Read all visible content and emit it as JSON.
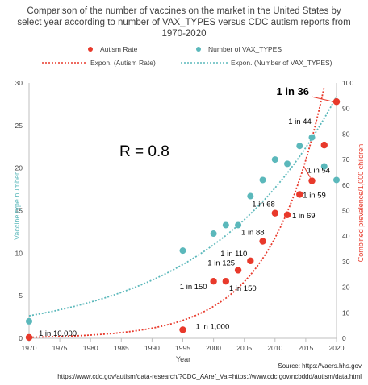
{
  "chart_data": {
    "type": "scatter",
    "title_lines": [
      "Comparison of the number of vaccines on the market in the United States by",
      "select year according to number of VAX_TYPES versus CDC autism reports from",
      "1970-2020"
    ],
    "legend": {
      "autism": "Autism Rate",
      "vax": "Number of VAX_TYPES",
      "autism_trend": "Expon. (Autism Rate)",
      "vax_trend": "Expon. (Number of VAX_TYPES)"
    },
    "xlabel": "Year",
    "ylabel_left": "Vaccine type number",
    "ylabel_right": "Combined prevalence/1,000 children",
    "xlim": [
      1970,
      2020
    ],
    "ylim_left": [
      0,
      30
    ],
    "ylim_right": [
      0,
      100
    ],
    "x_ticks": [
      "1970",
      "1975",
      "1980",
      "1985",
      "1990",
      "1995",
      "2000",
      "2005",
      "2010",
      "2015",
      "2020"
    ],
    "y_left_ticks": [
      "0",
      "5",
      "10",
      "15",
      "20",
      "25",
      "30"
    ],
    "y_right_ticks": [
      "0",
      "10",
      "20",
      "30",
      "40",
      "50",
      "60",
      "70",
      "80",
      "90",
      "100"
    ],
    "r_label": "R = 0.8",
    "colors": {
      "autism": "#e8392b",
      "vax": "#5bb8bb",
      "text": "#404040",
      "axis": "#bfbfbf"
    },
    "series": [
      {
        "name": "Number of VAX_TYPES",
        "axis": "left",
        "points": [
          {
            "x": 1970,
            "y": 2
          },
          {
            "x": 1995,
            "y": 10.3
          },
          {
            "x": 2000,
            "y": 12.3
          },
          {
            "x": 2002,
            "y": 13.3
          },
          {
            "x": 2004,
            "y": 13.3
          },
          {
            "x": 2006,
            "y": 16.7
          },
          {
            "x": 2008,
            "y": 18.6
          },
          {
            "x": 2010,
            "y": 21
          },
          {
            "x": 2012,
            "y": 20.5
          },
          {
            "x": 2014,
            "y": 22.6
          },
          {
            "x": 2016,
            "y": 23.6
          },
          {
            "x": 2018,
            "y": 20.2
          },
          {
            "x": 2020,
            "y": 18.6
          }
        ]
      },
      {
        "name": "Autism Rate",
        "axis": "right",
        "points": [
          {
            "x": 1970,
            "y": 0.1,
            "label": "1 in 10,000"
          },
          {
            "x": 1995,
            "y": 1,
            "label": "1 in 1,000"
          },
          {
            "x": 2000,
            "y": 6.7,
            "label": "1 in 150"
          },
          {
            "x": 2002,
            "y": 6.7,
            "label": "1 in 150"
          },
          {
            "x": 2004,
            "y": 8,
            "label": "1 in 125"
          },
          {
            "x": 2006,
            "y": 9.1,
            "label": "1 in 110"
          },
          {
            "x": 2008,
            "y": 11.4,
            "label": "1 in 88"
          },
          {
            "x": 2010,
            "y": 14.7,
            "label": "1 in 68"
          },
          {
            "x": 2012,
            "y": 14.5,
            "label": "1 in 69"
          },
          {
            "x": 2014,
            "y": 16.9,
            "label": "1 in 59"
          },
          {
            "x": 2016,
            "y": 18.5,
            "label": "1 in 54"
          },
          {
            "x": 2018,
            "y": 22.7,
            "label": "1 in 44"
          },
          {
            "x": 2020,
            "y": 27.8,
            "label": "1 in 36"
          }
        ]
      }
    ],
    "sources": [
      "Source: https://vaers.hhs.gov",
      "https://www.cdc.gov/autism/data-research/?CDC_AAref_Val=https://www.cdc.gov/ncbddd/autism/data.html"
    ]
  }
}
